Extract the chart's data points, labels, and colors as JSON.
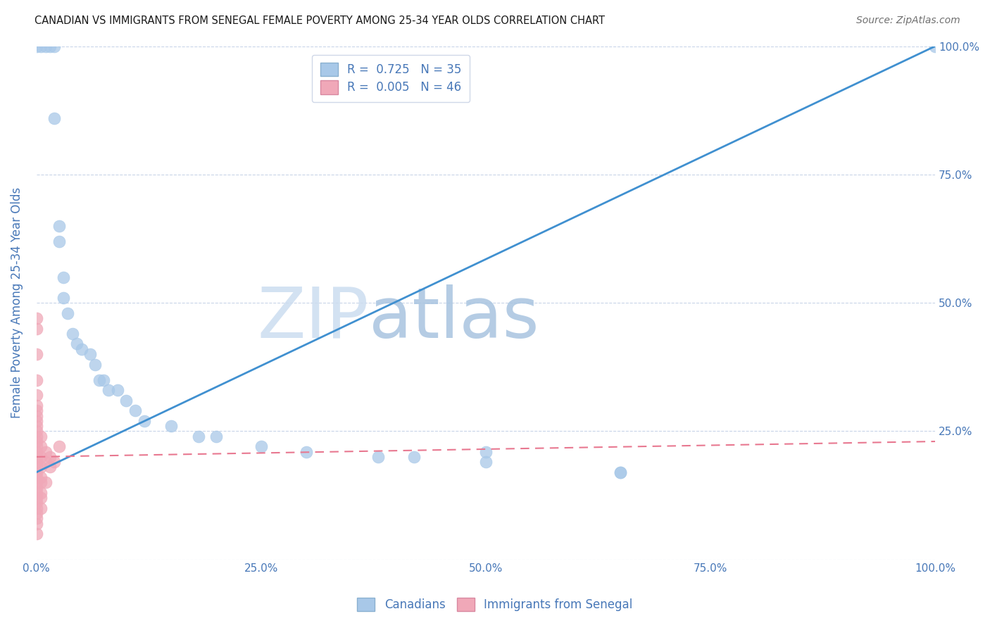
{
  "title": "CANADIAN VS IMMIGRANTS FROM SENEGAL FEMALE POVERTY AMONG 25-34 YEAR OLDS CORRELATION CHART",
  "source": "Source: ZipAtlas.com",
  "ylabel": "Female Poverty Among 25-34 Year Olds",
  "background_color": "#ffffff",
  "watermark_zip": "ZIP",
  "watermark_atlas": "atlas",
  "canadian_R": 0.725,
  "canadian_N": 35,
  "senegal_R": 0.005,
  "senegal_N": 46,
  "canadian_color": "#a8c8e8",
  "senegal_color": "#f0a8b8",
  "canadian_line_color": "#4090d0",
  "senegal_line_color": "#e87890",
  "canadian_x": [
    0.0,
    0.5,
    1.0,
    1.5,
    2.0,
    2.0,
    2.5,
    2.5,
    3.0,
    3.0,
    3.5,
    4.0,
    4.5,
    5.0,
    6.0,
    6.5,
    7.0,
    7.5,
    8.0,
    9.0,
    10.0,
    11.0,
    12.0,
    15.0,
    18.0,
    20.0,
    25.0,
    30.0,
    38.0,
    42.0,
    50.0,
    50.0,
    65.0,
    65.0,
    100.0
  ],
  "canadian_y": [
    100.0,
    100.0,
    100.0,
    100.0,
    100.0,
    86.0,
    65.0,
    62.0,
    55.0,
    51.0,
    48.0,
    44.0,
    42.0,
    41.0,
    40.0,
    38.0,
    35.0,
    35.0,
    33.0,
    33.0,
    31.0,
    29.0,
    27.0,
    26.0,
    24.0,
    24.0,
    22.0,
    21.0,
    20.0,
    20.0,
    21.0,
    19.0,
    17.0,
    17.0,
    100.0
  ],
  "senegal_x": [
    0.0,
    0.0,
    0.0,
    0.0,
    0.0,
    0.0,
    0.0,
    0.0,
    0.0,
    0.0,
    0.0,
    0.0,
    0.0,
    0.0,
    0.0,
    0.0,
    0.0,
    0.0,
    0.0,
    0.0,
    0.0,
    0.0,
    0.0,
    0.0,
    0.0,
    0.0,
    0.0,
    0.0,
    0.0,
    0.0,
    0.5,
    0.5,
    0.5,
    0.5,
    0.5,
    0.5,
    0.5,
    0.5,
    0.5,
    1.0,
    1.0,
    1.0,
    1.5,
    1.5,
    2.0,
    2.5
  ],
  "senegal_y": [
    5.0,
    7.0,
    8.0,
    9.0,
    10.0,
    11.0,
    12.0,
    13.0,
    14.0,
    15.0,
    16.0,
    17.0,
    18.0,
    19.0,
    20.0,
    21.0,
    22.0,
    23.0,
    24.0,
    25.0,
    26.0,
    27.0,
    28.0,
    29.0,
    30.0,
    32.0,
    35.0,
    40.0,
    45.0,
    47.0,
    18.0,
    20.0,
    22.0,
    24.0,
    15.0,
    12.0,
    10.0,
    13.0,
    16.0,
    19.0,
    21.0,
    15.0,
    18.0,
    20.0,
    19.0,
    22.0
  ],
  "xlim": [
    0.0,
    100.0
  ],
  "ylim": [
    0.0,
    100.0
  ],
  "grid_color": "#c8d4e8",
  "axis_color": "#4878b8",
  "tick_color": "#4878b8",
  "canadian_line_x": [
    0.0,
    100.0
  ],
  "canadian_line_y": [
    17.0,
    100.0
  ],
  "senegal_line_x": [
    0.0,
    100.0
  ],
  "senegal_line_y": [
    20.0,
    23.0
  ]
}
